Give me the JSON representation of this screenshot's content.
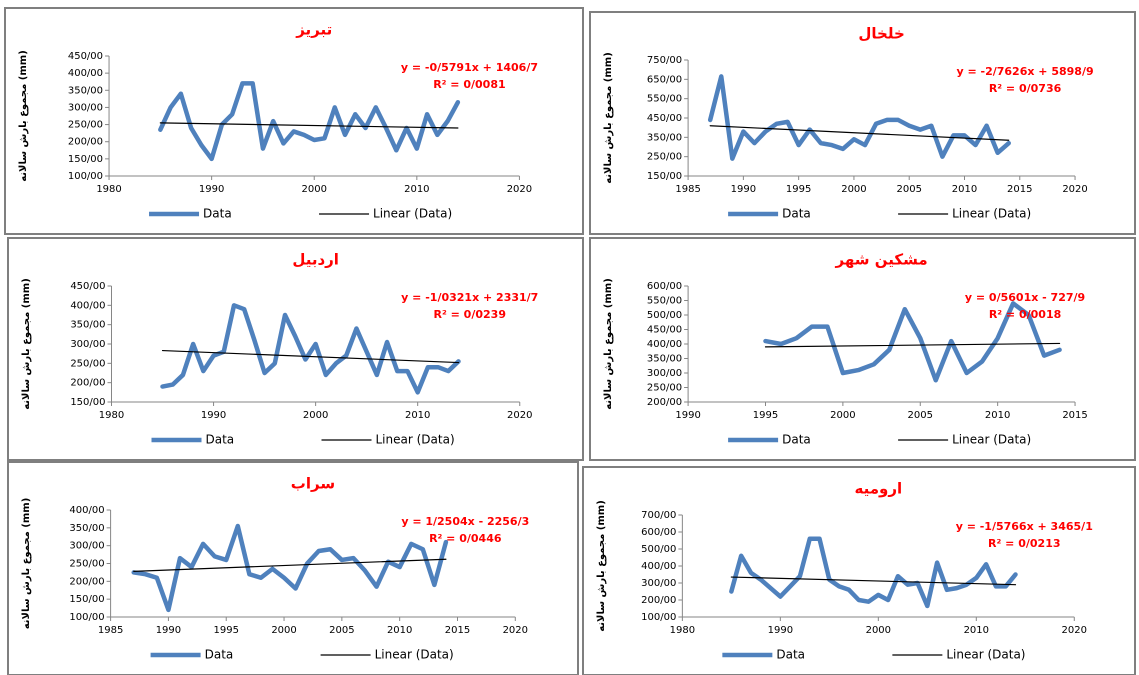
{
  "chart_data": [
    {
      "type": "line",
      "title": "تبریز",
      "y_label": "مجموع بارش سالانه (mm)",
      "annotations": [
        "y = -0/5791x + 1406/7",
        "R² = 0/0081"
      ],
      "legend": "bottom",
      "xlim": [
        1980,
        2020
      ],
      "xticks": [
        1980,
        1990,
        2000,
        2010,
        2020
      ],
      "ylim": [
        100,
        450
      ],
      "yticks": [
        {
          "value": 100,
          "label": "100/00"
        },
        {
          "value": 150,
          "label": "150/00"
        },
        {
          "value": 200,
          "label": "200/00"
        },
        {
          "value": 250,
          "label": "250/00"
        },
        {
          "value": 300,
          "label": "300/00"
        },
        {
          "value": 350,
          "label": "350/00"
        },
        {
          "value": 400,
          "label": "400/00"
        },
        {
          "value": 450,
          "label": "450/00"
        }
      ],
      "series": [
        {
          "name": "Data",
          "color": "#4f81bd",
          "x": [
            1985,
            1986,
            1987,
            1988,
            1989,
            1990,
            1991,
            1992,
            1993,
            1994,
            1995,
            1996,
            1997,
            1998,
            1999,
            2000,
            2001,
            2002,
            2003,
            2004,
            2005,
            2006,
            2007,
            2008,
            2009,
            2010,
            2011,
            2012,
            2013,
            2014
          ],
          "values": [
            235,
            300,
            340,
            240,
            190,
            150,
            250,
            280,
            370,
            370,
            180,
            260,
            195,
            230,
            220,
            205,
            210,
            300,
            220,
            280,
            240,
            300,
            240,
            175,
            240,
            180,
            280,
            220,
            260,
            315
          ]
        },
        {
          "name": "Linear (Data)",
          "color": "#000000",
          "x": [
            1985,
            2014
          ],
          "values": [
            255,
            240
          ]
        }
      ]
    },
    {
      "type": "line",
      "title": "خلخال",
      "y_label": "مجموع بارش سالانه (mm)",
      "annotations": [
        "y = -2/7626x + 5898/9",
        "R² = 0/0736"
      ],
      "legend": "bottom",
      "xlim": [
        1985,
        2020
      ],
      "xticks": [
        1985,
        1990,
        1995,
        2000,
        2005,
        2010,
        2015,
        2020
      ],
      "ylim": [
        150,
        750
      ],
      "yticks": [
        {
          "value": 150,
          "label": "150/00"
        },
        {
          "value": 250,
          "label": "250/00"
        },
        {
          "value": 350,
          "label": "350/00"
        },
        {
          "value": 450,
          "label": "450/00"
        },
        {
          "value": 550,
          "label": "550/00"
        },
        {
          "value": 650,
          "label": "650/00"
        },
        {
          "value": 750,
          "label": "750/00"
        }
      ],
      "series": [
        {
          "name": "Data",
          "color": "#4f81bd",
          "x": [
            1987,
            1988,
            1989,
            1990,
            1991,
            1992,
            1993,
            1994,
            1995,
            1996,
            1997,
            1998,
            1999,
            2000,
            2001,
            2002,
            2003,
            2004,
            2005,
            2006,
            2007,
            2008,
            2009,
            2010,
            2011,
            2012,
            2013,
            2014
          ],
          "values": [
            440,
            665,
            240,
            380,
            320,
            380,
            420,
            430,
            310,
            390,
            320,
            310,
            290,
            340,
            310,
            420,
            440,
            440,
            410,
            390,
            410,
            250,
            360,
            360,
            310,
            410,
            270,
            320
          ]
        },
        {
          "name": "Linear (Data)",
          "color": "#000000",
          "x": [
            1987,
            2014
          ],
          "values": [
            410,
            335
          ]
        }
      ]
    },
    {
      "type": "line",
      "title": "اردبیل",
      "y_label": "مجموع بارش سالانه (mm)",
      "annotations": [
        "y = -1/0321x + 2331/7",
        "R² = 0/0239"
      ],
      "legend": "bottom",
      "xlim": [
        1980,
        2020
      ],
      "xticks": [
        1980,
        1990,
        2000,
        2010,
        2020
      ],
      "ylim": [
        150,
        450
      ],
      "yticks": [
        {
          "value": 150,
          "label": "150/00"
        },
        {
          "value": 200,
          "label": "200/00"
        },
        {
          "value": 250,
          "label": "250/00"
        },
        {
          "value": 300,
          "label": "300/00"
        },
        {
          "value": 350,
          "label": "350/00"
        },
        {
          "value": 400,
          "label": "400/00"
        },
        {
          "value": 450,
          "label": "450/00"
        }
      ],
      "series": [
        {
          "name": "Data",
          "color": "#4f81bd",
          "x": [
            1985,
            1986,
            1987,
            1988,
            1989,
            1990,
            1991,
            1992,
            1993,
            1994,
            1995,
            1996,
            1997,
            1998,
            1999,
            2000,
            2001,
            2002,
            2003,
            2004,
            2005,
            2006,
            2007,
            2008,
            2009,
            2010,
            2011,
            2012,
            2013,
            2014
          ],
          "values": [
            190,
            195,
            220,
            300,
            230,
            270,
            280,
            400,
            390,
            310,
            225,
            250,
            375,
            320,
            260,
            300,
            220,
            250,
            270,
            340,
            280,
            220,
            305,
            230,
            230,
            175,
            240,
            240,
            230,
            255
          ]
        },
        {
          "name": "Linear (Data)",
          "color": "#000000",
          "x": [
            1985,
            2014
          ],
          "values": [
            283,
            252
          ]
        }
      ]
    },
    {
      "type": "line",
      "title": "مشکین شهر",
      "y_label": "مجموع بارش سالانه (mm)",
      "annotations": [
        "y = 0/5601x - 727/9",
        "R² = 0/0018"
      ],
      "legend": "bottom",
      "xlim": [
        1990,
        2015
      ],
      "xticks": [
        1990,
        1995,
        2000,
        2005,
        2010,
        2015
      ],
      "ylim": [
        200,
        600
      ],
      "yticks": [
        {
          "value": 200,
          "label": "200/00"
        },
        {
          "value": 250,
          "label": "250/00"
        },
        {
          "value": 300,
          "label": "300/00"
        },
        {
          "value": 350,
          "label": "350/00"
        },
        {
          "value": 400,
          "label": "400/00"
        },
        {
          "value": 450,
          "label": "450/00"
        },
        {
          "value": 500,
          "label": "500/00"
        },
        {
          "value": 550,
          "label": "550/00"
        },
        {
          "value": 600,
          "label": "600/00"
        }
      ],
      "series": [
        {
          "name": "Data",
          "color": "#4f81bd",
          "x": [
            1995,
            1996,
            1997,
            1998,
            1999,
            2000,
            2001,
            2002,
            2003,
            2004,
            2005,
            2006,
            2007,
            2008,
            2009,
            2010,
            2011,
            2012,
            2013,
            2014
          ],
          "values": [
            410,
            400,
            420,
            460,
            460,
            300,
            310,
            330,
            380,
            520,
            420,
            275,
            410,
            300,
            340,
            420,
            540,
            500,
            360,
            380
          ]
        },
        {
          "name": "Linear (Data)",
          "color": "#000000",
          "x": [
            1995,
            2014
          ],
          "values": [
            390,
            402
          ]
        }
      ]
    },
    {
      "type": "line",
      "title": "سراب",
      "y_label": "مجموع بارش سالانه (mm)",
      "annotations": [
        "y = 1/2504x - 2256/3",
        "R² = 0/0446"
      ],
      "legend": "bottom",
      "xlim": [
        1985,
        2020
      ],
      "xticks": [
        1985,
        1990,
        1995,
        2000,
        2005,
        2010,
        2015,
        2020
      ],
      "ylim": [
        100,
        400
      ],
      "yticks": [
        {
          "value": 100,
          "label": "100/00"
        },
        {
          "value": 150,
          "label": "150/00"
        },
        {
          "value": 200,
          "label": "200/00"
        },
        {
          "value": 250,
          "label": "250/00"
        },
        {
          "value": 300,
          "label": "300/00"
        },
        {
          "value": 350,
          "label": "350/00"
        },
        {
          "value": 400,
          "label": "400/00"
        }
      ],
      "series": [
        {
          "name": "Data",
          "color": "#4f81bd",
          "x": [
            1987,
            1988,
            1989,
            1990,
            1991,
            1992,
            1993,
            1994,
            1995,
            1996,
            1997,
            1998,
            1999,
            2000,
            2001,
            2002,
            2003,
            2004,
            2005,
            2006,
            2007,
            2008,
            2009,
            2010,
            2011,
            2012,
            2013,
            2014
          ],
          "values": [
            225,
            220,
            210,
            120,
            265,
            240,
            305,
            270,
            260,
            355,
            220,
            210,
            235,
            210,
            180,
            250,
            285,
            290,
            260,
            265,
            230,
            185,
            255,
            240,
            305,
            290,
            190,
            310
          ]
        },
        {
          "name": "Linear (Data)",
          "color": "#000000",
          "x": [
            1987,
            2014
          ],
          "values": [
            228,
            262
          ]
        }
      ]
    },
    {
      "type": "line",
      "title": "ارومیه",
      "y_label": "مجموع بارش سالانه (mm)",
      "annotations": [
        "y = -1/5766x + 3465/1",
        "R² = 0/0213"
      ],
      "legend": "bottom",
      "xlim": [
        1980,
        2020
      ],
      "xticks": [
        1980,
        1990,
        2000,
        2010,
        2020
      ],
      "ylim": [
        100,
        700
      ],
      "yticks": [
        {
          "value": 100,
          "label": "100/00"
        },
        {
          "value": 200,
          "label": "200/00"
        },
        {
          "value": 300,
          "label": "300/00"
        },
        {
          "value": 400,
          "label": "400/00"
        },
        {
          "value": 500,
          "label": "500/00"
        },
        {
          "value": 600,
          "label": "600/00"
        },
        {
          "value": 700,
          "label": "700/00"
        }
      ],
      "series": [
        {
          "name": "Data",
          "color": "#4f81bd",
          "x": [
            1985,
            1986,
            1987,
            1988,
            1989,
            1990,
            1991,
            1992,
            1993,
            1994,
            1995,
            1996,
            1997,
            1998,
            1999,
            2000,
            2001,
            2002,
            2003,
            2004,
            2005,
            2006,
            2007,
            2008,
            2009,
            2010,
            2011,
            2012,
            2013,
            2014
          ],
          "values": [
            250,
            460,
            360,
            320,
            270,
            220,
            280,
            340,
            560,
            560,
            320,
            280,
            260,
            200,
            190,
            230,
            200,
            340,
            290,
            300,
            165,
            420,
            260,
            270,
            290,
            330,
            410,
            280,
            280,
            350
          ]
        },
        {
          "name": "Linear (Data)",
          "color": "#000000",
          "x": [
            1985,
            2014
          ],
          "values": [
            335,
            290
          ]
        }
      ]
    }
  ]
}
